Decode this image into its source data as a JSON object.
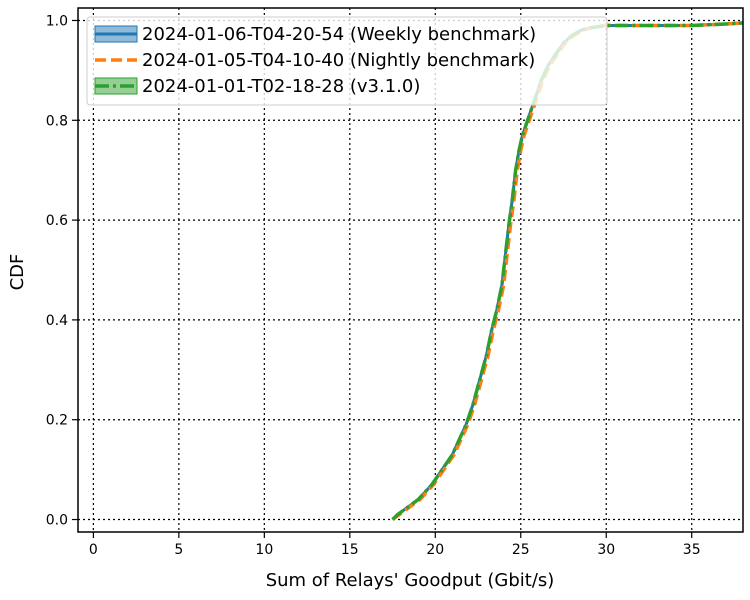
{
  "chart_data": {
    "type": "line",
    "xlabel": "Sum of Relays' Goodput (Gbit/s)",
    "ylabel": "CDF",
    "xlim": [
      -0.9,
      38
    ],
    "ylim": [
      -0.025,
      1.025
    ],
    "xticks": [
      0,
      5,
      10,
      15,
      20,
      25,
      30,
      35
    ],
    "yticks": [
      0.0,
      0.2,
      0.4,
      0.6,
      0.8,
      1.0
    ],
    "xtick_labels": [
      "0",
      "5",
      "10",
      "15",
      "20",
      "25",
      "30",
      "35"
    ],
    "ytick_labels": [
      "0.0",
      "0.2",
      "0.4",
      "0.6",
      "0.8",
      "1.0"
    ],
    "grid": true,
    "grid_style": "dotted",
    "legend_position": "top-left",
    "series": [
      {
        "name": "2024-01-06-T04-20-54 (Weekly benchmark)",
        "color": "#1f77b4",
        "style": "solid-with-band",
        "x": [
          17.5,
          17.8,
          18.2,
          18.6,
          19.0,
          19.4,
          19.8,
          20.2,
          20.6,
          21.0,
          21.4,
          21.8,
          22.2,
          22.6,
          23.0,
          23.3,
          23.6,
          23.9,
          24.1,
          24.3,
          24.5,
          24.7,
          24.9,
          25.1,
          25.4,
          25.8,
          26.2,
          26.6,
          27.0,
          27.5,
          28.0,
          28.5,
          29.0,
          30.0,
          32.0,
          35.0,
          37.0,
          38.0
        ],
        "y": [
          0.0,
          0.01,
          0.02,
          0.03,
          0.04,
          0.055,
          0.07,
          0.09,
          0.11,
          0.13,
          0.16,
          0.19,
          0.23,
          0.28,
          0.33,
          0.38,
          0.42,
          0.47,
          0.53,
          0.59,
          0.64,
          0.7,
          0.74,
          0.77,
          0.8,
          0.84,
          0.88,
          0.91,
          0.93,
          0.955,
          0.97,
          0.98,
          0.985,
          0.99,
          0.99,
          0.99,
          0.993,
          0.995
        ]
      },
      {
        "name": "2024-01-05-T04-10-40 (Nightly benchmark)",
        "color": "#ff7f0e",
        "style": "dashed",
        "x": [
          17.5,
          17.9,
          18.3,
          18.7,
          19.1,
          19.5,
          19.9,
          20.3,
          20.7,
          21.1,
          21.5,
          21.9,
          22.3,
          22.7,
          23.1,
          23.4,
          23.7,
          24.0,
          24.2,
          24.4,
          24.6,
          24.8,
          25.0,
          25.2,
          25.5,
          25.9,
          26.3,
          26.7,
          27.1,
          27.6,
          28.1,
          28.6,
          29.1,
          30.0,
          32.0,
          35.0,
          37.0,
          38.0
        ],
        "y": [
          0.0,
          0.01,
          0.02,
          0.03,
          0.04,
          0.055,
          0.07,
          0.09,
          0.11,
          0.13,
          0.16,
          0.19,
          0.23,
          0.28,
          0.33,
          0.38,
          0.42,
          0.47,
          0.53,
          0.59,
          0.64,
          0.7,
          0.74,
          0.77,
          0.8,
          0.84,
          0.88,
          0.91,
          0.93,
          0.955,
          0.97,
          0.98,
          0.985,
          0.99,
          0.99,
          0.99,
          0.993,
          0.995
        ]
      },
      {
        "name": "2024-01-01-T02-18-28 (v3.1.0)",
        "color": "#2ca02c",
        "style": "dashdot-with-band",
        "x": [
          17.5,
          17.8,
          18.2,
          18.6,
          19.0,
          19.4,
          19.8,
          20.2,
          20.6,
          21.0,
          21.4,
          21.8,
          22.2,
          22.6,
          23.0,
          23.3,
          23.6,
          23.9,
          24.1,
          24.3,
          24.5,
          24.7,
          24.9,
          25.1,
          25.4,
          25.8,
          26.2,
          26.6,
          27.0,
          27.5,
          28.0,
          28.5,
          29.0,
          30.0,
          32.0,
          35.0,
          37.0,
          38.0
        ],
        "y": [
          0.0,
          0.01,
          0.02,
          0.03,
          0.04,
          0.055,
          0.07,
          0.09,
          0.11,
          0.13,
          0.16,
          0.19,
          0.23,
          0.28,
          0.33,
          0.38,
          0.42,
          0.47,
          0.53,
          0.59,
          0.64,
          0.7,
          0.74,
          0.77,
          0.8,
          0.84,
          0.88,
          0.91,
          0.93,
          0.955,
          0.97,
          0.98,
          0.985,
          0.99,
          0.99,
          0.99,
          0.993,
          0.995
        ]
      }
    ]
  }
}
